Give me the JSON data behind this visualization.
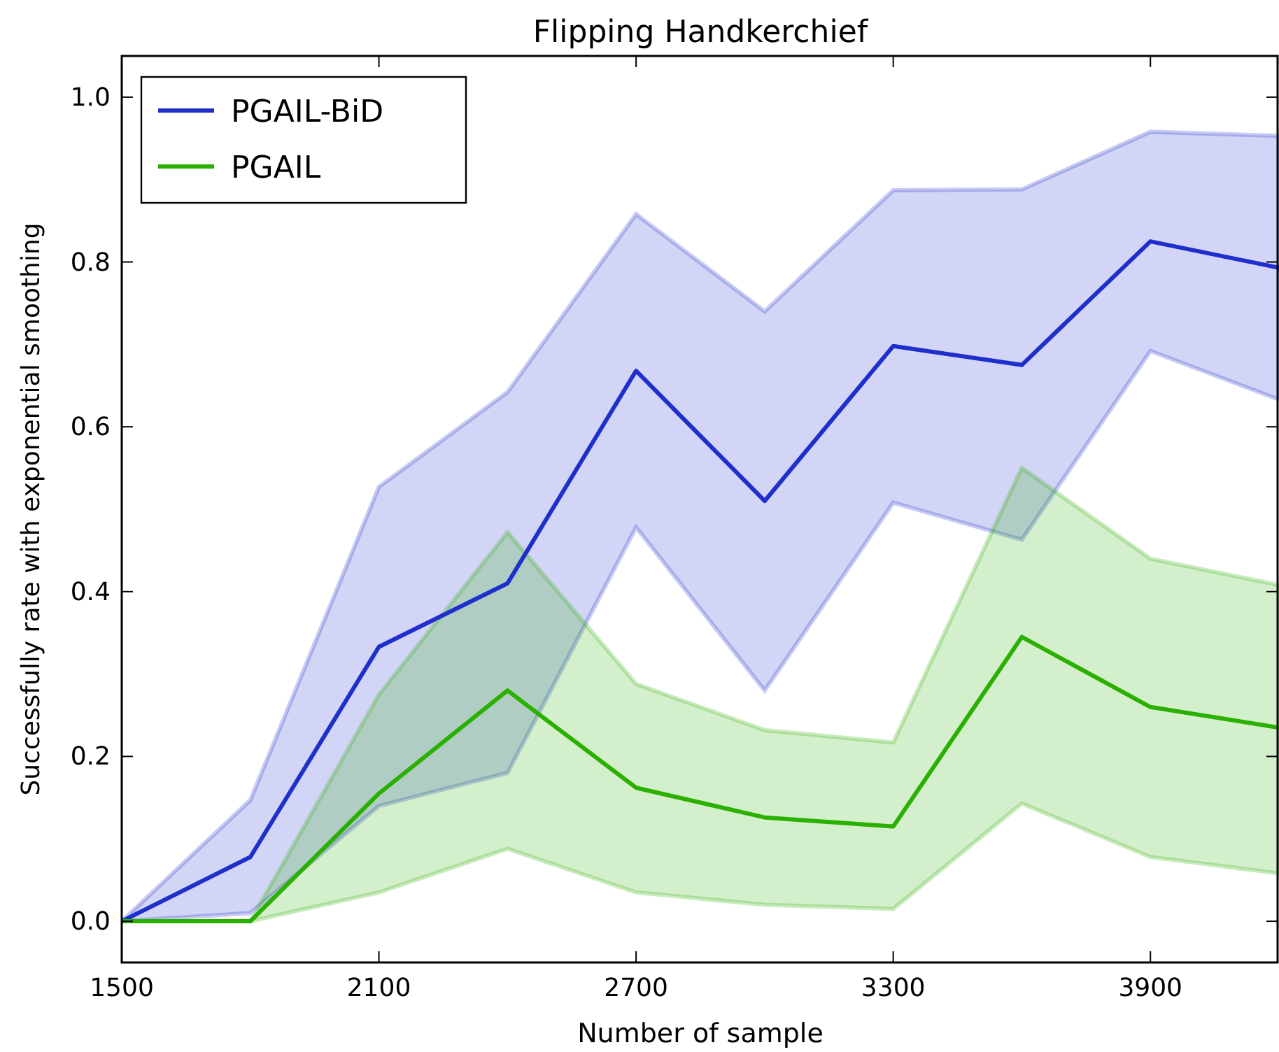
{
  "chart_data": {
    "type": "line",
    "title": "Flipping Handkerchief",
    "xlabel": "Number of sample",
    "ylabel": "Successfully rate with exponential smoothing",
    "x": [
      1500,
      1800,
      2100,
      2400,
      2700,
      3000,
      3300,
      3600,
      3900,
      4200
    ],
    "series": [
      {
        "name": "PGAIL-BiD",
        "color": "#1f2fcc",
        "values": [
          0,
          0.078,
          0.333,
          0.41,
          0.668,
          0.51,
          0.698,
          0.675,
          0.825,
          0.793
        ],
        "lower": [
          0,
          0.01,
          0.14,
          0.18,
          0.478,
          0.28,
          0.508,
          0.463,
          0.692,
          0.633
        ],
        "upper": [
          0,
          0.147,
          0.527,
          0.642,
          0.858,
          0.74,
          0.887,
          0.888,
          0.958,
          0.953
        ]
      },
      {
        "name": "PGAIL",
        "color": "#2ab000",
        "values": [
          0,
          0,
          0.155,
          0.28,
          0.162,
          0.126,
          0.115,
          0.345,
          0.26,
          0.235
        ],
        "lower": [
          0,
          0,
          0.035,
          0.088,
          0.035,
          0.02,
          0.015,
          0.143,
          0.078,
          0.058
        ],
        "upper": [
          0,
          0,
          0.275,
          0.472,
          0.288,
          0.232,
          0.217,
          0.55,
          0.44,
          0.408
        ]
      }
    ],
    "xlim": [
      1500,
      4200
    ],
    "xticks": [
      1500,
      2100,
      2700,
      3300,
      3900
    ],
    "ylim": [
      -0.05,
      1.05
    ],
    "yticks": [
      {
        "value": 0,
        "label": "0.0"
      },
      {
        "value": 0.2,
        "label": "0.2"
      },
      {
        "value": 0.4,
        "label": "0.4"
      },
      {
        "value": 0.6,
        "label": "0.6"
      },
      {
        "value": 0.8,
        "label": "0.8"
      },
      {
        "value": 1,
        "label": "1.0"
      }
    ],
    "grid": false,
    "legend": "top left",
    "line_style": "solid",
    "marker": "none"
  }
}
